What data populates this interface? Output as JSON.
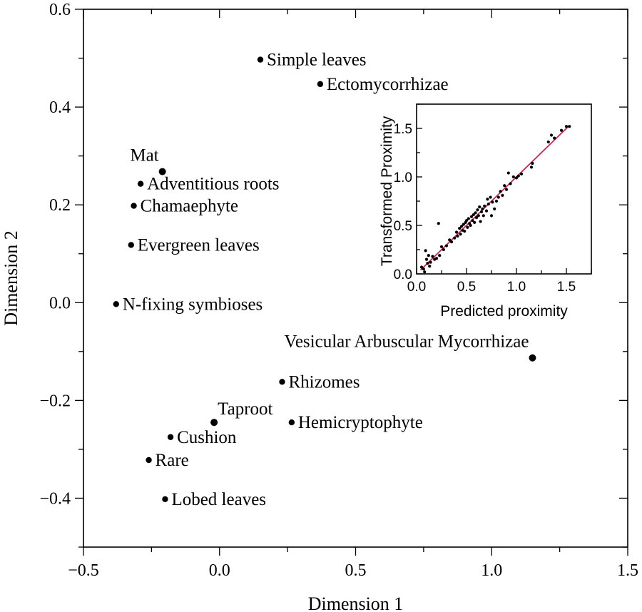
{
  "chart_data": [
    {
      "type": "scatter",
      "xlabel": "Dimension 1",
      "ylabel": "Dimension 2",
      "xlim": [
        -0.5,
        1.5
      ],
      "ylim": [
        -0.5,
        0.6
      ],
      "xticks": [
        -0.5,
        0.0,
        0.5,
        1.0,
        1.5
      ],
      "xtick_labels": [
        "−0.5",
        "0.0",
        "0.5",
        "1.0",
        "1.5"
      ],
      "yticks": [
        -0.4,
        -0.2,
        0.0,
        0.2,
        0.4,
        0.6
      ],
      "ytick_labels": [
        "−0.4",
        "−0.2",
        "0.0",
        "0.2",
        "0.4",
        "0.6"
      ],
      "grid": false,
      "points": [
        {
          "label": "Simple leaves",
          "x": 0.15,
          "y": 0.497,
          "label_pos": "right"
        },
        {
          "label": "Ectomycorrhizae",
          "x": 0.37,
          "y": 0.447,
          "label_pos": "right"
        },
        {
          "label": "Mat",
          "x": -0.21,
          "y": 0.268,
          "label_pos": "above-left"
        },
        {
          "label": "Adventitious roots",
          "x": -0.29,
          "y": 0.243,
          "label_pos": "right"
        },
        {
          "label": "Chamaephyte",
          "x": -0.315,
          "y": 0.198,
          "label_pos": "right"
        },
        {
          "label": "Evergreen leaves",
          "x": -0.325,
          "y": 0.118,
          "label_pos": "right"
        },
        {
          "label": "N-fixing symbioses",
          "x": -0.38,
          "y": -0.003,
          "label_pos": "right"
        },
        {
          "label": "Vesicular Arbuscular Mycorrhizae",
          "x": 1.15,
          "y": -0.113,
          "label_pos": "above-left"
        },
        {
          "label": "Rhizomes",
          "x": 0.23,
          "y": -0.162,
          "label_pos": "right"
        },
        {
          "label": "Taproot",
          "x": -0.02,
          "y": -0.245,
          "label_pos": "above-right"
        },
        {
          "label": "Hemicryptophyte",
          "x": 0.265,
          "y": -0.245,
          "label_pos": "right"
        },
        {
          "label": "Cushion",
          "x": -0.18,
          "y": -0.275,
          "label_pos": "right"
        },
        {
          "label": "Rare",
          "x": -0.26,
          "y": -0.322,
          "label_pos": "right"
        },
        {
          "label": "Lobed leaves",
          "x": -0.2,
          "y": -0.402,
          "label_pos": "right"
        }
      ]
    },
    {
      "type": "scatter",
      "role": "inset",
      "xlabel": "Predicted proximity",
      "ylabel": "Transformed Proximity",
      "xlim": [
        0.0,
        1.75
      ],
      "ylim": [
        0.0,
        1.75
      ],
      "xticks": [
        0.0,
        0.5,
        1.0,
        1.5
      ],
      "yticks": [
        0.0,
        0.5,
        1.0,
        1.5
      ],
      "tick_labels": [
        "0.0",
        "0.5",
        "1.0",
        "1.5"
      ],
      "fit_line": {
        "x": [
          0.04,
          1.53
        ],
        "y": [
          0.04,
          1.53
        ],
        "color": "#c8284b"
      },
      "point_color": "#000000",
      "points_xy": [
        [
          0.05,
          0.07
        ],
        [
          0.07,
          0.05
        ],
        [
          0.08,
          0.02
        ],
        [
          0.09,
          0.24
        ],
        [
          0.1,
          0.15
        ],
        [
          0.11,
          0.11
        ],
        [
          0.12,
          0.19
        ],
        [
          0.13,
          0.08
        ],
        [
          0.14,
          0.12
        ],
        [
          0.16,
          0.18
        ],
        [
          0.18,
          0.15
        ],
        [
          0.2,
          0.16
        ],
        [
          0.22,
          0.52
        ],
        [
          0.23,
          0.19
        ],
        [
          0.25,
          0.28
        ],
        [
          0.27,
          0.25
        ],
        [
          0.3,
          0.29
        ],
        [
          0.33,
          0.35
        ],
        [
          0.35,
          0.33
        ],
        [
          0.38,
          0.37
        ],
        [
          0.4,
          0.43
        ],
        [
          0.41,
          0.39
        ],
        [
          0.43,
          0.47
        ],
        [
          0.44,
          0.41
        ],
        [
          0.45,
          0.49
        ],
        [
          0.46,
          0.45
        ],
        [
          0.47,
          0.51
        ],
        [
          0.48,
          0.44
        ],
        [
          0.49,
          0.53
        ],
        [
          0.5,
          0.55
        ],
        [
          0.51,
          0.48
        ],
        [
          0.52,
          0.57
        ],
        [
          0.53,
          0.52
        ],
        [
          0.54,
          0.5
        ],
        [
          0.55,
          0.59
        ],
        [
          0.56,
          0.55
        ],
        [
          0.57,
          0.61
        ],
        [
          0.58,
          0.53
        ],
        [
          0.59,
          0.63
        ],
        [
          0.6,
          0.58
        ],
        [
          0.61,
          0.66
        ],
        [
          0.62,
          0.6
        ],
        [
          0.63,
          0.69
        ],
        [
          0.64,
          0.54
        ],
        [
          0.65,
          0.64
        ],
        [
          0.66,
          0.67
        ],
        [
          0.67,
          0.6
        ],
        [
          0.68,
          0.7
        ],
        [
          0.7,
          0.65
        ],
        [
          0.71,
          0.77
        ],
        [
          0.72,
          0.72
        ],
        [
          0.74,
          0.79
        ],
        [
          0.75,
          0.6
        ],
        [
          0.76,
          0.74
        ],
        [
          0.78,
          0.67
        ],
        [
          0.8,
          0.75
        ],
        [
          0.82,
          0.79
        ],
        [
          0.84,
          0.85
        ],
        [
          0.86,
          0.81
        ],
        [
          0.88,
          0.91
        ],
        [
          0.9,
          0.87
        ],
        [
          0.92,
          1.04
        ],
        [
          0.94,
          0.93
        ],
        [
          0.97,
          1.0
        ],
        [
          1.0,
          0.99
        ],
        [
          1.02,
          1.01
        ],
        [
          1.05,
          1.03
        ],
        [
          1.15,
          1.1
        ],
        [
          1.16,
          1.14
        ],
        [
          1.32,
          1.36
        ],
        [
          1.35,
          1.43
        ],
        [
          1.38,
          1.4
        ],
        [
          1.45,
          1.48
        ],
        [
          1.5,
          1.52
        ],
        [
          1.53,
          1.52
        ]
      ]
    }
  ]
}
